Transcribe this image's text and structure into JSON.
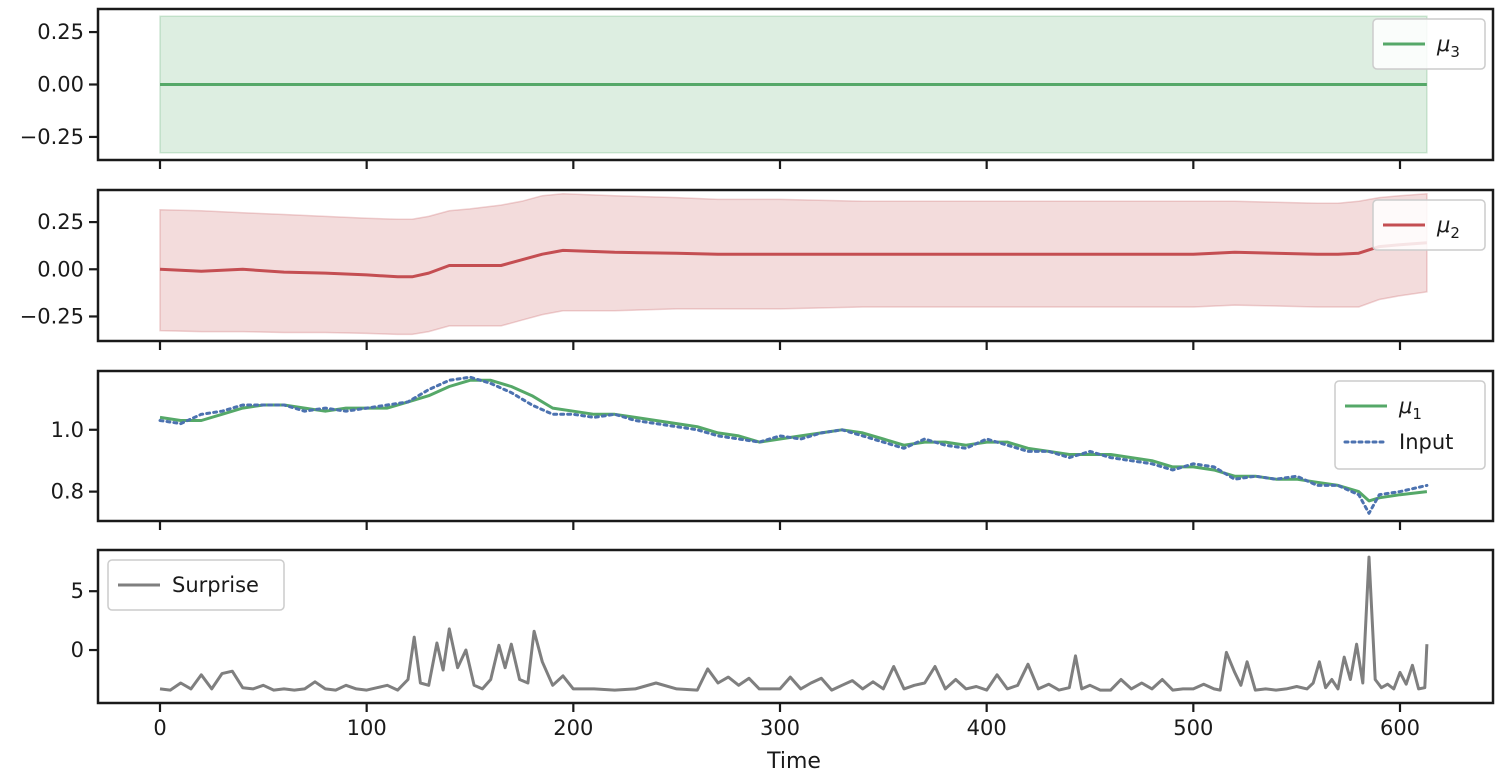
{
  "chart_data": [
    {
      "type": "line",
      "panel": "mu3",
      "xlabel": "",
      "ylabel": "",
      "xlim": [
        -30,
        645
      ],
      "ylim": [
        -0.36,
        0.36
      ],
      "yticks": [
        0.25,
        0.0,
        -0.25
      ],
      "ytick_labels": [
        "0.25",
        "0.00",
        "−0.25"
      ],
      "legend_position": "top-right",
      "grid": false,
      "series": [
        {
          "name": "μ₃",
          "name_base": "μ",
          "name_sub": "3",
          "color": "#55a868",
          "style": "solid",
          "x": [
            0,
            613
          ],
          "y": [
            0.0,
            0.0
          ],
          "band_lower": [
            -0.325,
            -0.325
          ],
          "band_upper": [
            0.325,
            0.325
          ]
        }
      ]
    },
    {
      "type": "line",
      "panel": "mu2",
      "xlabel": "",
      "ylabel": "",
      "xlim": [
        -30,
        645
      ],
      "ylim": [
        -0.38,
        0.42
      ],
      "yticks": [
        0.25,
        0.0,
        -0.25
      ],
      "ytick_labels": [
        "0.25",
        "0.00",
        "−0.25"
      ],
      "legend_position": "top-right",
      "grid": false,
      "series": [
        {
          "name": "μ₂",
          "name_base": "μ",
          "name_sub": "2",
          "color": "#c44e52",
          "style": "solid",
          "x": [
            0,
            20,
            40,
            60,
            80,
            100,
            115,
            122,
            130,
            140,
            150,
            165,
            175,
            185,
            195,
            220,
            250,
            270,
            300,
            340,
            380,
            420,
            460,
            500,
            520,
            560,
            570,
            580,
            590,
            600,
            613
          ],
          "y": [
            0.0,
            -0.01,
            0.0,
            -0.015,
            -0.02,
            -0.03,
            -0.04,
            -0.04,
            -0.02,
            0.02,
            0.02,
            0.02,
            0.05,
            0.08,
            0.1,
            0.09,
            0.085,
            0.08,
            0.08,
            0.08,
            0.08,
            0.08,
            0.08,
            0.08,
            0.09,
            0.08,
            0.08,
            0.085,
            0.12,
            0.13,
            0.14
          ],
          "band_lower": [
            -0.325,
            -0.33,
            -0.33,
            -0.335,
            -0.335,
            -0.34,
            -0.345,
            -0.345,
            -0.33,
            -0.3,
            -0.3,
            -0.3,
            -0.27,
            -0.24,
            -0.22,
            -0.22,
            -0.21,
            -0.21,
            -0.21,
            -0.2,
            -0.2,
            -0.2,
            -0.2,
            -0.2,
            -0.19,
            -0.2,
            -0.2,
            -0.2,
            -0.16,
            -0.14,
            -0.12
          ],
          "band_upper": [
            0.315,
            0.31,
            0.3,
            0.29,
            0.28,
            0.27,
            0.265,
            0.265,
            0.28,
            0.31,
            0.32,
            0.34,
            0.36,
            0.39,
            0.4,
            0.39,
            0.38,
            0.37,
            0.37,
            0.36,
            0.36,
            0.36,
            0.36,
            0.36,
            0.36,
            0.35,
            0.35,
            0.36,
            0.38,
            0.39,
            0.4
          ]
        }
      ]
    },
    {
      "type": "line",
      "panel": "mu1",
      "xlabel": "",
      "ylabel": "",
      "xlim": [
        -30,
        645
      ],
      "ylim": [
        0.705,
        1.19
      ],
      "yticks": [
        1.0,
        0.8
      ],
      "ytick_labels": [
        "1.0",
        "0.8"
      ],
      "legend_position": "top-right",
      "grid": false,
      "series": [
        {
          "name": "μ₁",
          "name_base": "μ",
          "name_sub": "1",
          "color": "#55a868",
          "style": "solid",
          "x": [
            0,
            10,
            20,
            30,
            40,
            50,
            60,
            70,
            80,
            90,
            100,
            110,
            120,
            130,
            140,
            150,
            160,
            170,
            180,
            190,
            200,
            210,
            220,
            230,
            240,
            250,
            260,
            270,
            280,
            290,
            300,
            310,
            320,
            330,
            340,
            350,
            360,
            370,
            380,
            390,
            400,
            410,
            420,
            430,
            440,
            450,
            460,
            470,
            480,
            490,
            500,
            510,
            520,
            530,
            540,
            550,
            560,
            570,
            580,
            585,
            590,
            600,
            613
          ],
          "y": [
            1.04,
            1.03,
            1.03,
            1.05,
            1.07,
            1.08,
            1.08,
            1.07,
            1.06,
            1.07,
            1.07,
            1.07,
            1.09,
            1.11,
            1.14,
            1.16,
            1.16,
            1.14,
            1.11,
            1.07,
            1.06,
            1.05,
            1.05,
            1.04,
            1.03,
            1.02,
            1.01,
            0.99,
            0.98,
            0.96,
            0.97,
            0.98,
            0.99,
            1.0,
            0.99,
            0.97,
            0.95,
            0.96,
            0.96,
            0.95,
            0.96,
            0.96,
            0.94,
            0.93,
            0.92,
            0.92,
            0.92,
            0.91,
            0.9,
            0.88,
            0.88,
            0.87,
            0.85,
            0.85,
            0.84,
            0.84,
            0.83,
            0.82,
            0.8,
            0.77,
            0.78,
            0.79,
            0.8
          ]
        },
        {
          "name": "Input",
          "name_base": "Input",
          "name_sub": "",
          "color": "#4c72b0",
          "style": "dotted",
          "x": [
            0,
            10,
            20,
            30,
            40,
            50,
            60,
            70,
            80,
            90,
            100,
            110,
            120,
            130,
            140,
            150,
            160,
            170,
            180,
            190,
            200,
            210,
            220,
            230,
            240,
            250,
            260,
            270,
            280,
            290,
            300,
            310,
            320,
            330,
            340,
            350,
            360,
            370,
            380,
            390,
            400,
            410,
            420,
            430,
            440,
            450,
            460,
            470,
            480,
            490,
            500,
            510,
            520,
            530,
            540,
            550,
            560,
            570,
            580,
            585,
            590,
            600,
            613
          ],
          "y": [
            1.03,
            1.02,
            1.05,
            1.06,
            1.08,
            1.08,
            1.08,
            1.06,
            1.07,
            1.06,
            1.07,
            1.08,
            1.09,
            1.13,
            1.16,
            1.17,
            1.15,
            1.12,
            1.08,
            1.05,
            1.05,
            1.04,
            1.05,
            1.03,
            1.02,
            1.01,
            1.0,
            0.98,
            0.97,
            0.96,
            0.98,
            0.97,
            0.99,
            1.0,
            0.98,
            0.96,
            0.94,
            0.97,
            0.95,
            0.94,
            0.97,
            0.95,
            0.93,
            0.93,
            0.91,
            0.93,
            0.91,
            0.9,
            0.89,
            0.87,
            0.89,
            0.88,
            0.84,
            0.85,
            0.84,
            0.85,
            0.82,
            0.82,
            0.79,
            0.73,
            0.79,
            0.8,
            0.82
          ]
        }
      ]
    },
    {
      "type": "line",
      "panel": "surprise",
      "xlabel": "Time",
      "ylabel": "",
      "xlim": [
        -30,
        645
      ],
      "ylim": [
        -4.5,
        8.5
      ],
      "yticks": [
        5,
        0
      ],
      "ytick_labels": [
        "5",
        "0"
      ],
      "xticks": [
        0,
        100,
        200,
        300,
        400,
        500,
        600
      ],
      "xtick_labels": [
        "0",
        "100",
        "200",
        "300",
        "400",
        "500",
        "600"
      ],
      "legend_position": "top-left",
      "grid": false,
      "series": [
        {
          "name": "Surprise",
          "name_base": "Surprise",
          "name_sub": "",
          "color": "#7f7f7f",
          "style": "solid",
          "x": [
            0,
            5,
            10,
            15,
            20,
            25,
            30,
            35,
            40,
            45,
            50,
            55,
            60,
            65,
            70,
            75,
            80,
            85,
            90,
            95,
            100,
            105,
            110,
            115,
            120,
            123,
            126,
            130,
            134,
            137,
            140,
            144,
            148,
            152,
            156,
            160,
            164,
            167,
            170,
            174,
            178,
            181,
            185,
            190,
            195,
            200,
            210,
            220,
            230,
            240,
            250,
            260,
            265,
            270,
            275,
            280,
            285,
            290,
            300,
            305,
            310,
            315,
            320,
            325,
            330,
            335,
            340,
            345,
            350,
            355,
            360,
            365,
            370,
            375,
            380,
            385,
            390,
            395,
            400,
            405,
            410,
            415,
            420,
            425,
            430,
            435,
            440,
            443,
            446,
            450,
            455,
            460,
            465,
            470,
            475,
            480,
            485,
            490,
            495,
            500,
            505,
            510,
            513,
            516,
            520,
            523,
            526,
            530,
            535,
            540,
            545,
            550,
            555,
            558,
            561,
            564,
            567,
            570,
            573,
            576,
            579,
            582,
            585,
            588,
            591,
            594,
            597,
            600,
            603,
            606,
            609,
            612,
            613
          ],
          "y": [
            -3.3,
            -3.4,
            -2.8,
            -3.3,
            -2.1,
            -3.3,
            -2.0,
            -1.8,
            -3.2,
            -3.3,
            -3.0,
            -3.4,
            -3.3,
            -3.4,
            -3.3,
            -2.7,
            -3.3,
            -3.4,
            -3.0,
            -3.3,
            -3.4,
            -3.2,
            -3.0,
            -3.4,
            -2.5,
            1.1,
            -2.8,
            -3.0,
            0.6,
            -1.7,
            1.8,
            -1.5,
            0.0,
            -3.0,
            -3.3,
            -2.5,
            0.4,
            -1.5,
            0.5,
            -2.5,
            -2.8,
            1.6,
            -1.0,
            -3.0,
            -2.2,
            -3.3,
            -3.3,
            -3.4,
            -3.3,
            -2.8,
            -3.3,
            -3.4,
            -1.6,
            -2.8,
            -2.3,
            -3.0,
            -2.4,
            -3.3,
            -3.3,
            -2.3,
            -3.3,
            -2.8,
            -2.4,
            -3.4,
            -3.0,
            -2.6,
            -3.3,
            -2.7,
            -3.3,
            -1.4,
            -3.3,
            -3.0,
            -2.8,
            -1.4,
            -3.3,
            -2.5,
            -3.3,
            -3.1,
            -3.4,
            -2.1,
            -3.3,
            -3.0,
            -1.2,
            -3.3,
            -2.9,
            -3.4,
            -3.2,
            -0.5,
            -3.3,
            -3.0,
            -3.4,
            -3.4,
            -2.5,
            -3.3,
            -2.8,
            -3.3,
            -2.5,
            -3.4,
            -3.3,
            -3.3,
            -2.9,
            -3.3,
            -3.4,
            -0.2,
            -1.9,
            -3.0,
            -1.0,
            -3.4,
            -3.3,
            -3.4,
            -3.3,
            -3.1,
            -3.3,
            -2.8,
            -1.0,
            -3.2,
            -2.5,
            -3.3,
            -0.6,
            -2.5,
            0.5,
            -2.8,
            7.9,
            -2.5,
            -3.2,
            -2.9,
            -3.3,
            -1.9,
            -2.9,
            -1.3,
            -3.3,
            -3.2,
            0.5
          ]
        }
      ]
    }
  ]
}
